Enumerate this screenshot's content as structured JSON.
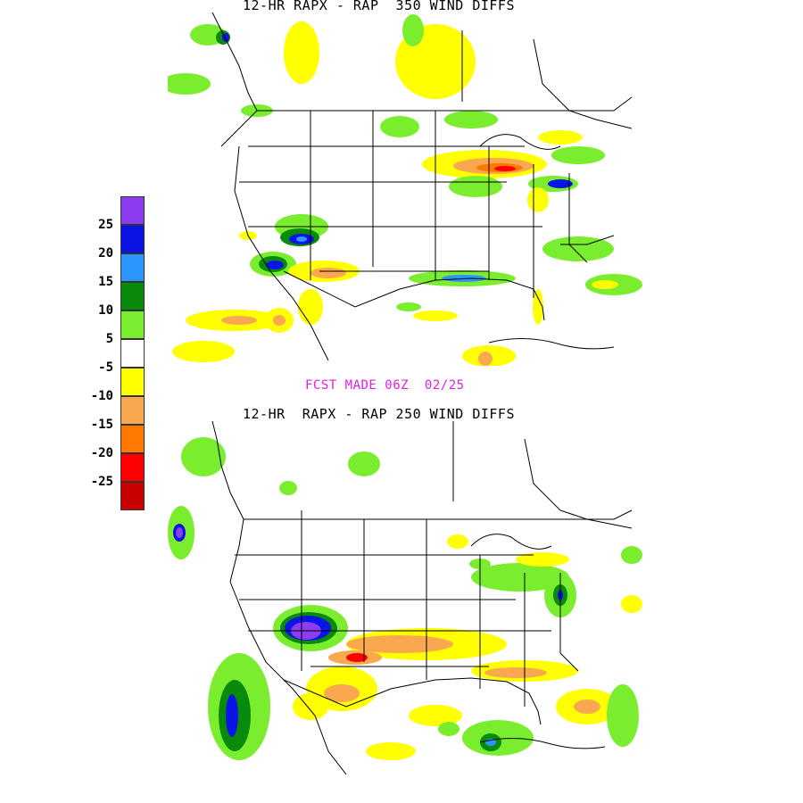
{
  "top_panel": {
    "title": "12-HR RAPX - RAP  350 WIND DIFFS"
  },
  "subtitle": "FCST MADE 06Z  02/25",
  "bottom_panel": {
    "title": "12-HR  RAPX - RAP 250 WIND DIFFS"
  },
  "legend": {
    "colors": [
      "#8e3cf0",
      "#0a14e6",
      "#2c96ff",
      "#0a8a0a",
      "#7aee2e",
      "#ffffff",
      "#ffff00",
      "#f9a850",
      "#ff7800",
      "#ff0000",
      "#c80000"
    ],
    "labels": [
      "25",
      "20",
      "15",
      "10",
      "5",
      "-5",
      "-10",
      "-15",
      "-20",
      "-25"
    ]
  }
}
